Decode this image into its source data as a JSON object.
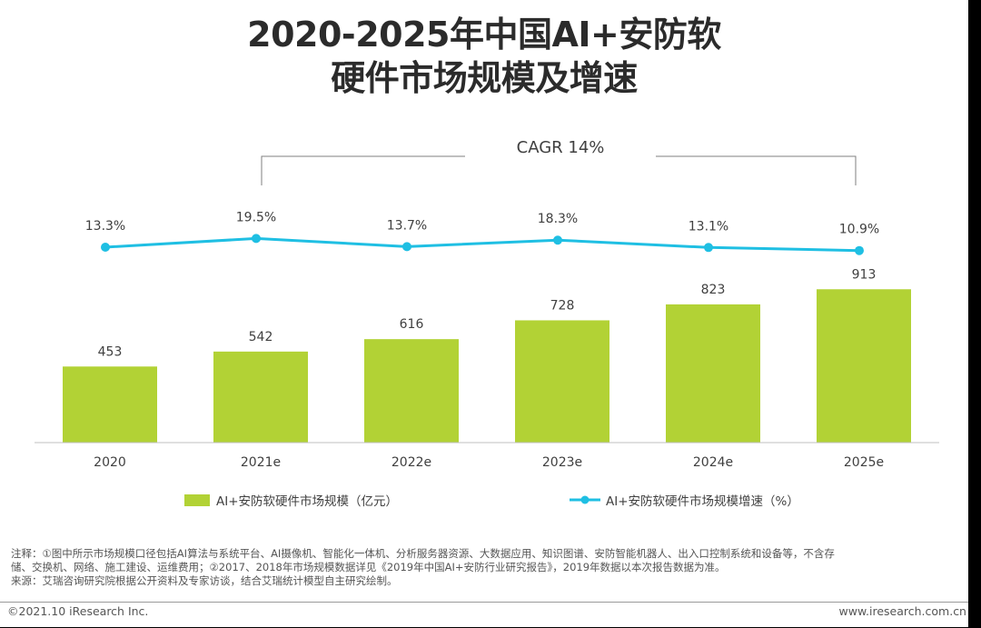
{
  "title": {
    "line1": "2020-2025年中国AI+安防软",
    "line2": "硬件市场规模及增速"
  },
  "chart_data": {
    "type": "bar",
    "categories": [
      "2020",
      "2021e",
      "2022e",
      "2023e",
      "2024e",
      "2025e"
    ],
    "series": [
      {
        "name": "AI+安防软硬件市场规模（亿元）",
        "type": "bar",
        "values": [
          453,
          542,
          616,
          728,
          823,
          913
        ],
        "labels": [
          "453",
          "542",
          "616",
          "728",
          "823",
          "913"
        ],
        "color": "#b2d235"
      },
      {
        "name": "AI+安防软硬件市场规模增速（%）",
        "type": "line",
        "values": [
          13.3,
          19.5,
          13.7,
          18.3,
          13.1,
          10.9
        ],
        "labels": [
          "13.3%",
          "19.5%",
          "13.7%",
          "18.3%",
          "13.1%",
          "10.9%"
        ],
        "color": "#1fbfe3"
      }
    ],
    "annotation": "CAGR 14%",
    "legend_position": "bottom",
    "grid": false
  },
  "notes": {
    "line1": "注释：①图中所示市场规模口径包括AI算法与系统平台、AI摄像机、智能化一体机、分析服务器资源、大数据应用、知识图谱、安防智能机器人、出入口控制系统和设备等，不含存",
    "line2": "储、交换机、网络、施工建设、运维费用；②2017、2018年市场规模数据详见《2019年中国AI+安防行业研究报告》，2019年数据以本次报告数据为准。",
    "line3": "来源：艾瑞咨询研究院根据公开资料及专家访谈，结合艾瑞统计模型自主研究绘制。"
  },
  "footer": {
    "copyright": "©2021.10 iResearch Inc.",
    "website": "www.iresearch.com.cn"
  }
}
